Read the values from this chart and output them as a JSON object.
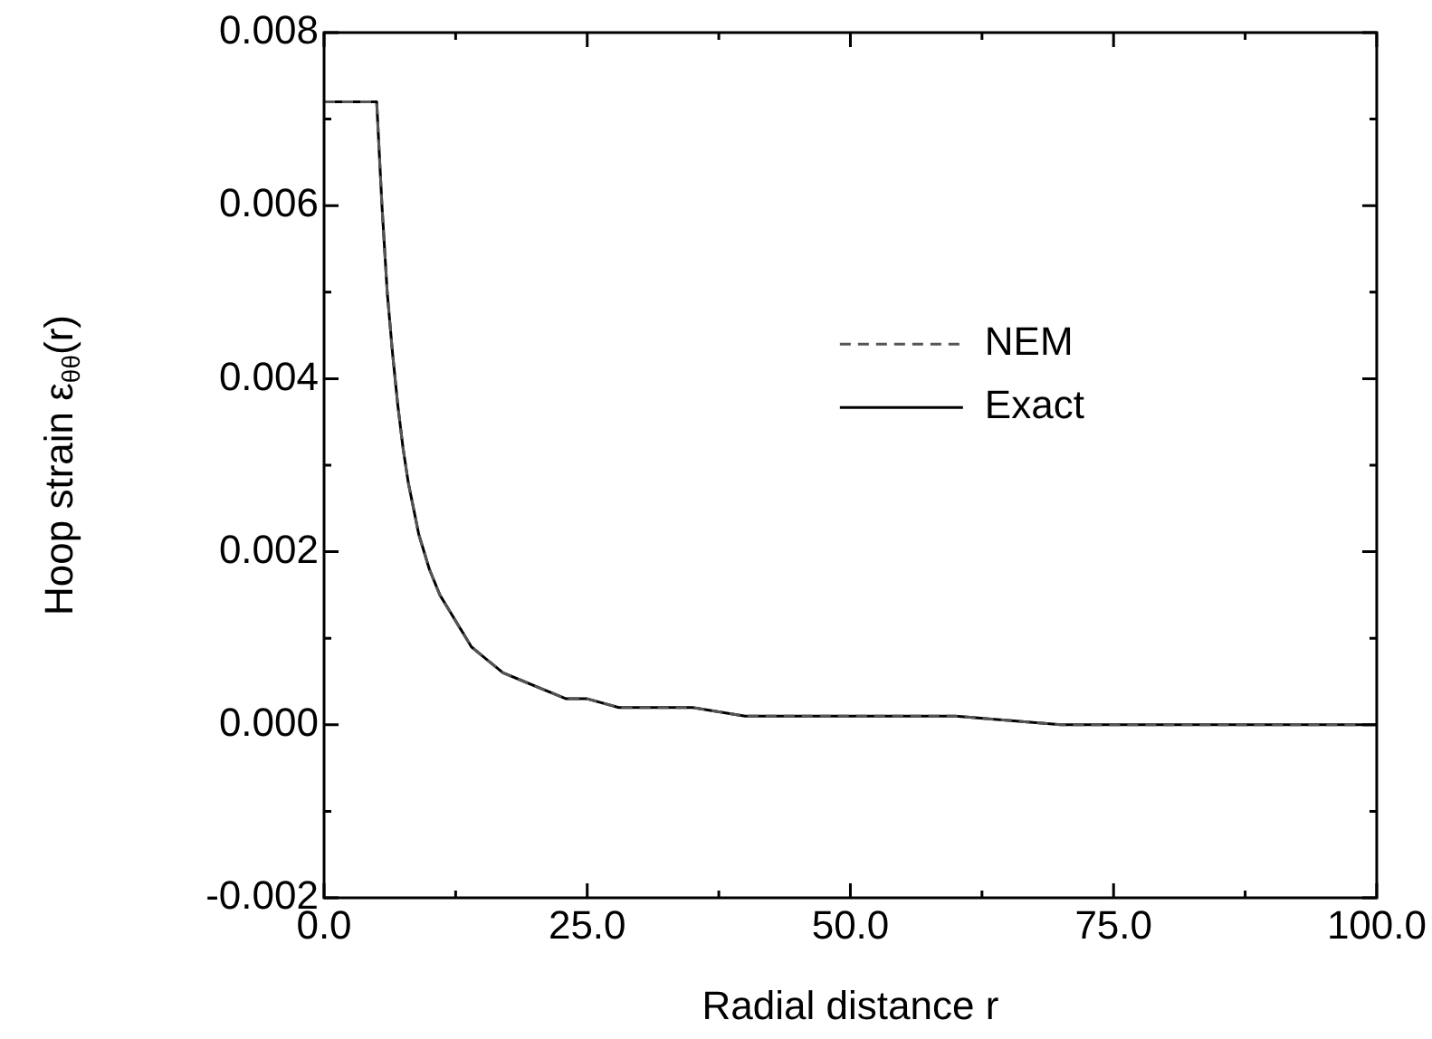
{
  "chart_data": {
    "type": "line",
    "xlabel": "Radial distance r",
    "ylabel": "Hoop strain ε$_{θθ}$(r)",
    "xlim": [
      0,
      100
    ],
    "ylim": [
      -0.002,
      0.008
    ],
    "xticks": [
      {
        "value": 0,
        "label": "0.0"
      },
      {
        "value": 12.5,
        "label": null
      },
      {
        "value": 25,
        "label": "25.0"
      },
      {
        "value": 37.5,
        "label": null
      },
      {
        "value": 50,
        "label": "50.0"
      },
      {
        "value": 62.5,
        "label": null
      },
      {
        "value": 75,
        "label": "75.0"
      },
      {
        "value": 87.5,
        "label": null
      },
      {
        "value": 100,
        "label": "100.0"
      }
    ],
    "yticks": [
      {
        "value": -0.002,
        "label": "-0.002"
      },
      {
        "value": -0.001,
        "label": null
      },
      {
        "value": 0,
        "label": "0.000"
      },
      {
        "value": 0.001,
        "label": null
      },
      {
        "value": 0.002,
        "label": "0.002"
      },
      {
        "value": 0.003,
        "label": null
      },
      {
        "value": 0.004,
        "label": "0.004"
      },
      {
        "value": 0.005,
        "label": null
      },
      {
        "value": 0.006,
        "label": "0.006"
      },
      {
        "value": 0.007,
        "label": null
      },
      {
        "value": 0.008,
        "label": "0.008"
      }
    ],
    "x": [
      0,
      1,
      2,
      3,
      4,
      5,
      5.5,
      6,
      6.5,
      7,
      7.5,
      8,
      9,
      10,
      11,
      12,
      13,
      14,
      15,
      17,
      19,
      21,
      23,
      25,
      28,
      31,
      35,
      40,
      45,
      50,
      60,
      70,
      80,
      90,
      100
    ],
    "series": [
      {
        "name": "NEM",
        "color": "#555555",
        "line_style": "dashed",
        "values": [
          0.0072,
          0.0072,
          0.0072,
          0.0072,
          0.0072,
          0.0072,
          0.006,
          0.005,
          0.0043,
          0.0037,
          0.0032,
          0.0028,
          0.0022,
          0.0018,
          0.0015,
          0.0013,
          0.0011,
          0.0009,
          0.0008,
          0.0006,
          0.0005,
          0.0004,
          0.0003,
          0.0003,
          0.0002,
          0.0002,
          0.0002,
          0.0001,
          0.0001,
          0.0001,
          0.0001,
          0,
          0,
          0,
          0
        ]
      },
      {
        "name": "Exact",
        "color": "#000000",
        "line_style": "solid",
        "values": [
          0.0072,
          0.0072,
          0.0072,
          0.0072,
          0.0072,
          0.0072,
          0.006,
          0.005,
          0.0043,
          0.0037,
          0.0032,
          0.0028,
          0.0022,
          0.0018,
          0.0015,
          0.0013,
          0.0011,
          0.0009,
          0.0008,
          0.0006,
          0.0005,
          0.0004,
          0.0003,
          0.0003,
          0.0002,
          0.0002,
          0.0002,
          0.0001,
          0.0001,
          0.0001,
          0.0001,
          0,
          0,
          0,
          0
        ]
      }
    ],
    "legend": "center",
    "grid": false,
    "marker": "none"
  }
}
